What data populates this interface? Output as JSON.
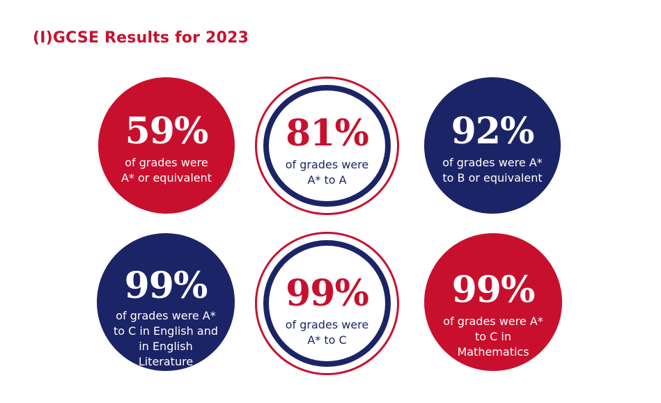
{
  "title": "(I)GCSE Results for 2023",
  "stats": [
    {
      "value": "59%",
      "description": "of grades were\nA* or equivalent",
      "style": "solid-red"
    },
    {
      "value": "81%",
      "description": "of grades were\nA* to A",
      "style": "ringed"
    },
    {
      "value": "92%",
      "description": "of grades were A*\nto B or equivalent",
      "style": "solid-navy"
    },
    {
      "value": "99%",
      "description": "of grades were A*\nto C in English and\nin English\nLiterature",
      "style": "solid-navy"
    },
    {
      "value": "99%",
      "description": "of grades were\nA* to C",
      "style": "ringed"
    },
    {
      "value": "99%",
      "description": "of grades were A*\nto C in\nMathematics",
      "style": "solid-red"
    }
  ],
  "colors": {
    "red": "#c8102e",
    "navy": "#1b2466",
    "background": "#ffffff"
  }
}
